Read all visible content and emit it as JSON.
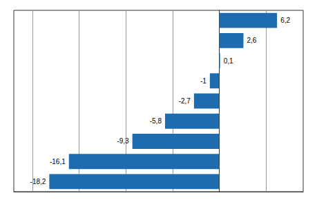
{
  "chart_data": {
    "type": "bar",
    "orientation": "horizontal",
    "categories": [
      null,
      null,
      null,
      null,
      null,
      null,
      null,
      null,
      null
    ],
    "values": [
      6.2,
      2.6,
      0.1,
      -1.0,
      -2.7,
      -5.8,
      -9.3,
      -16.1,
      -18.2
    ],
    "value_labels": [
      "6,2",
      "2,6",
      "0,1",
      "-1",
      "-2,7",
      "-5,8",
      "-9,3",
      "-16,1",
      "-18,2"
    ],
    "data_labels": true,
    "color": "#1F6BAF",
    "xlim": [
      -22,
      9
    ],
    "xticks": [
      -20,
      -15,
      -10,
      -5,
      0,
      5
    ],
    "grid": true,
    "tick_labels": false
  }
}
